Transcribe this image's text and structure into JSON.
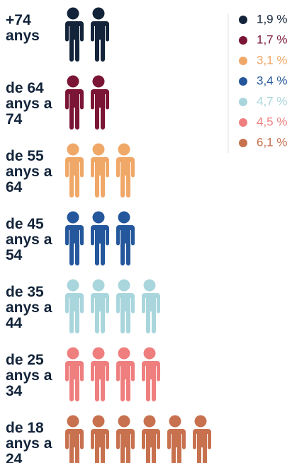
{
  "chart_data": {
    "type": "pictogram",
    "categories": [
      "+74 anys",
      "de 64 anys a 74",
      "de 55 anys a 64",
      "de 45 anys a 54",
      "de 35 anys a 44",
      "de 25 anys a 34",
      "de 18 anys a 24"
    ],
    "icons": [
      2,
      2,
      3,
      3,
      4,
      4,
      6
    ],
    "values": [
      1.9,
      1.7,
      3.1,
      3.4,
      4.7,
      4.5,
      6.1
    ],
    "value_labels": [
      "1,9 %",
      "1,7 %",
      "3,1 %",
      "3,4 %",
      "4,7 %",
      "4,5 %",
      "6,1 %"
    ],
    "colors": [
      "#13243a",
      "#7b1535",
      "#f0a868",
      "#24579b",
      "#a9d6dd",
      "#ef7f7f",
      "#c8714f"
    ]
  }
}
